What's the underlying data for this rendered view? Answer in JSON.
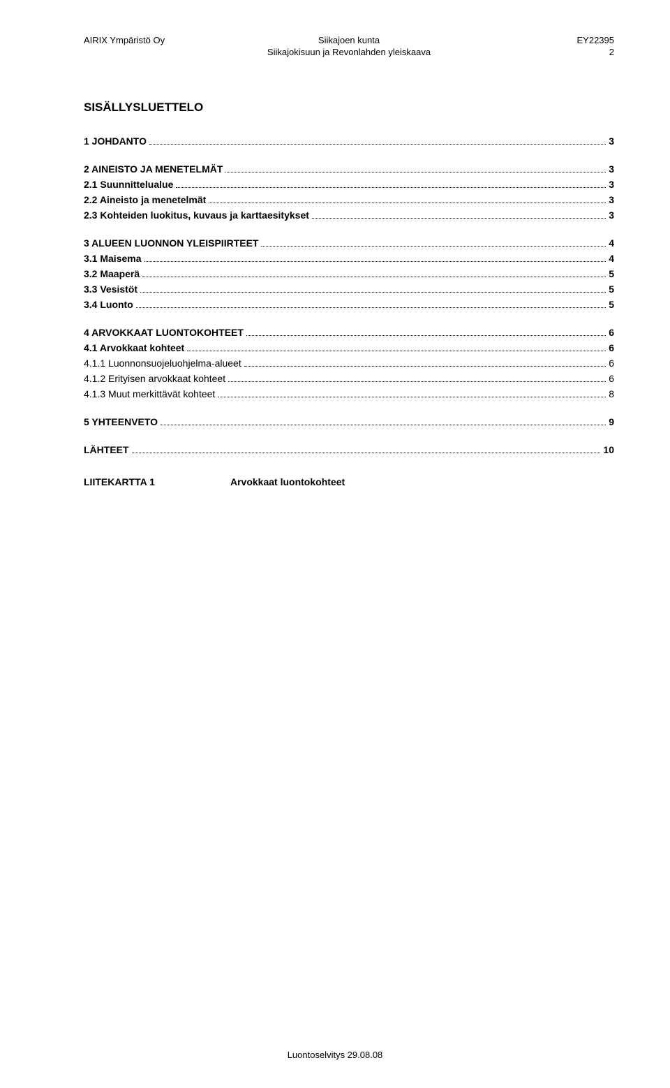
{
  "header": {
    "left_line1": "AIRIX Ympäristö Oy",
    "center_line1": "Siikajoen kunta",
    "center_line2": "Siikajokisuun ja Revonlahden yleiskaava",
    "right_line1": "EY22395",
    "right_line2": "2"
  },
  "toc_title": "SISÄLLYSLUETTELO",
  "toc": [
    {
      "label": "1 JOHDANTO",
      "page": "3",
      "bold": true,
      "gap": false,
      "indent": 0
    },
    {
      "label": "2 AINEISTO JA MENETELMÄT",
      "page": "3",
      "bold": true,
      "gap": true,
      "indent": 0
    },
    {
      "label": "2.1 Suunnittelualue",
      "page": "3",
      "bold": true,
      "gap": false,
      "indent": 1
    },
    {
      "label": "2.2 Aineisto ja menetelmät",
      "page": "3",
      "bold": true,
      "gap": false,
      "indent": 1
    },
    {
      "label": "2.3 Kohteiden luokitus, kuvaus ja karttaesitykset",
      "page": "3",
      "bold": true,
      "gap": false,
      "indent": 1
    },
    {
      "label": "3 ALUEEN LUONNON YLEISPIIRTEET",
      "page": "4",
      "bold": true,
      "gap": true,
      "indent": 0
    },
    {
      "label": "3.1 Maisema",
      "page": "4",
      "bold": true,
      "gap": false,
      "indent": 1
    },
    {
      "label": "3.2 Maaperä",
      "page": "5",
      "bold": true,
      "gap": false,
      "indent": 1
    },
    {
      "label": "3.3 Vesistöt",
      "page": "5",
      "bold": true,
      "gap": false,
      "indent": 1
    },
    {
      "label": "3.4 Luonto",
      "page": "5",
      "bold": true,
      "gap": false,
      "indent": 1
    },
    {
      "label": "4 ARVOKKAAT LUONTOKOHTEET",
      "page": "6",
      "bold": true,
      "gap": true,
      "indent": 0
    },
    {
      "label": "4.1 Arvokkaat kohteet",
      "page": "6",
      "bold": true,
      "gap": false,
      "indent": 1
    },
    {
      "label": "4.1.1 Luonnonsuojeluohjelma-alueet",
      "page": "6",
      "bold": false,
      "gap": false,
      "indent": 2
    },
    {
      "label": "4.1.2 Erityisen arvokkaat kohteet",
      "page": "6",
      "bold": false,
      "gap": false,
      "indent": 2
    },
    {
      "label": "4.1.3 Muut merkittävät kohteet",
      "page": "8",
      "bold": false,
      "gap": false,
      "indent": 2
    },
    {
      "label": "5 YHTEENVETO",
      "page": "9",
      "bold": true,
      "gap": true,
      "indent": 0
    },
    {
      "label": "LÄHTEET",
      "page": "10",
      "bold": true,
      "gap": true,
      "indent": 0
    }
  ],
  "liite": {
    "label": "LIITEKARTTA 1",
    "text": "Arvokkaat luontokohteet"
  },
  "footer": "Luontoselvitys 29.08.08"
}
